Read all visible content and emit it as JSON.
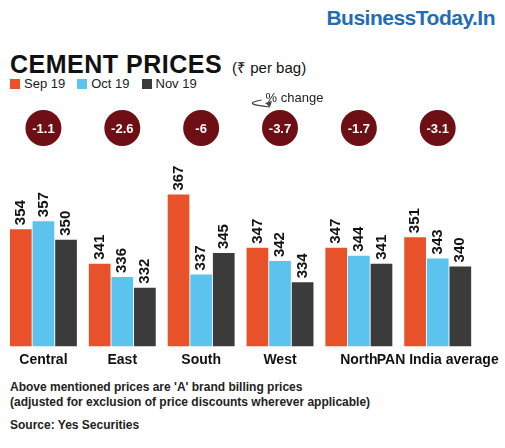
{
  "chart_data": {
    "type": "bar",
    "brand": "BusinessToday.In",
    "title": "CEMENT PRICES",
    "subtitle": "(₹ per bag)",
    "categories": [
      "Central",
      "East",
      "South",
      "West",
      "North",
      "PAN India average"
    ],
    "series": [
      {
        "name": "Sep 19",
        "color": "#e8522b",
        "values": [
          354,
          341,
          367,
          347,
          347,
          351
        ]
      },
      {
        "name": "Oct 19",
        "color": "#5cc3ef",
        "values": [
          357,
          336,
          337,
          342,
          344,
          343
        ]
      },
      {
        "name": "Nov 19",
        "color": "#3b3b3b",
        "values": [
          350,
          332,
          345,
          334,
          341,
          340
        ]
      }
    ],
    "pct_change": {
      "label": "% change",
      "color": "#6e0f16",
      "values": [
        -1.1,
        -2.6,
        -6,
        -3.7,
        -1.7,
        -3.1
      ]
    },
    "notes": [
      "Above mentioned prices are 'A' brand billing prices",
      "(adjusted for exclusion of price discounts wherever applicable)"
    ],
    "source": "Source: Yes Securities",
    "ylim": [
      310,
      380
    ],
    "grid": false,
    "legend": "top-left",
    "data_labels": true,
    "tick_labels": "x"
  }
}
